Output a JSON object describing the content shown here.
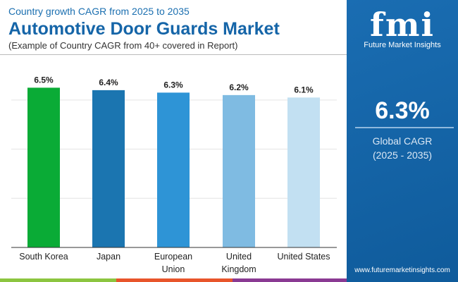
{
  "header": {
    "subtitle": "Country growth CAGR from 2025 to 2035",
    "title": "Automotive Door Guards Market",
    "note": "(Example of Country CAGR from 40+ covered in Report)"
  },
  "panel": {
    "logo": "fmi",
    "logo_text": "Future Market Insights",
    "value": "6.3%",
    "label": "Global CAGR",
    "period": "(2025 - 2035)",
    "url": "www.futuremarketinsights.com",
    "color": "#1565a8"
  },
  "chart_data": {
    "type": "bar",
    "categories": [
      "South Korea",
      "Japan",
      "European Union",
      "United Kingdom",
      "United States"
    ],
    "values": [
      6.5,
      6.4,
      6.3,
      6.2,
      6.1
    ],
    "labels": [
      "6.5%",
      "6.4%",
      "6.3%",
      "6.2%",
      "6.1%"
    ],
    "colors": [
      "#0aab36",
      "#1b75b0",
      "#2e94d6",
      "#7fbbe2",
      "#c2e0f2"
    ],
    "ylim": [
      0,
      7.2
    ],
    "grid": true
  },
  "stripes": [
    "#8cc540",
    "#e8552b",
    "#8a3a93"
  ]
}
